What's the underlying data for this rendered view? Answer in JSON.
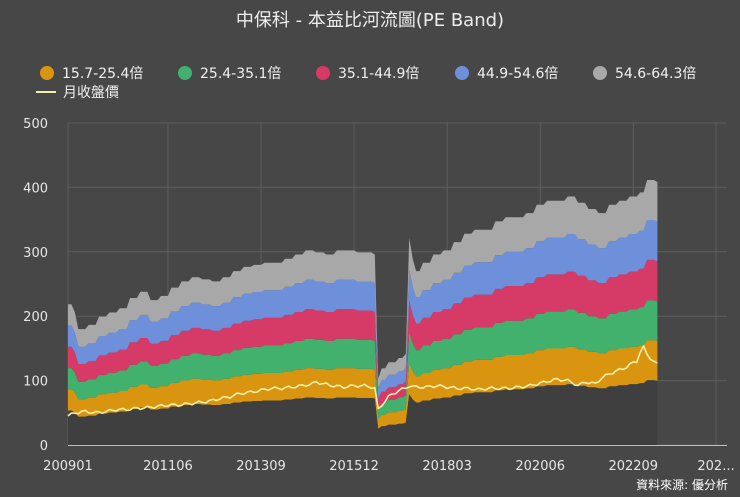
{
  "chart_data": {
    "type": "area",
    "title": "中保科 - 本益比河流圖(PE Band)",
    "source": "資料來源: 優分析",
    "xlabel": "",
    "ylabel": "",
    "ylim": [
      0,
      500
    ],
    "yticks": [
      "0",
      "100",
      "200",
      "300",
      "400",
      "500"
    ],
    "xticks": [
      "200901",
      "201106",
      "201309",
      "201512",
      "201803",
      "202006",
      "202209",
      "202..."
    ],
    "legend_position": "top",
    "x_index_range": [
      0,
      171
    ],
    "xtick_indices": [
      0,
      29,
      56,
      83,
      110,
      137,
      164,
      188
    ],
    "bands": [
      {
        "name": "15.7-25.4倍",
        "color": "#D9950F"
      },
      {
        "name": "25.4-35.1倍",
        "color": "#41B16D"
      },
      {
        "name": "35.1-44.9倍",
        "color": "#D63B67"
      },
      {
        "name": "44.9-54.6倍",
        "color": "#6E8FD9"
      },
      {
        "name": "54.6-64.3倍",
        "color": "#A8A8A8"
      }
    ],
    "close_series": {
      "name": "月收盤價",
      "color": "#F5EFA9"
    },
    "eps_breakpoints": [
      [
        0,
        3.4
      ],
      [
        2,
        3.2
      ],
      [
        3,
        2.8
      ],
      [
        6,
        2.9
      ],
      [
        9,
        3.1
      ],
      [
        12,
        3.2
      ],
      [
        15,
        3.3
      ],
      [
        18,
        3.55
      ],
      [
        21,
        3.7
      ],
      [
        24,
        3.5
      ],
      [
        27,
        3.6
      ],
      [
        30,
        3.8
      ],
      [
        33,
        3.95
      ],
      [
        36,
        4.05
      ],
      [
        39,
        4.0
      ],
      [
        42,
        3.95
      ],
      [
        45,
        4.05
      ],
      [
        48,
        4.2
      ],
      [
        51,
        4.3
      ],
      [
        54,
        4.35
      ],
      [
        57,
        4.4
      ],
      [
        60,
        4.4
      ],
      [
        63,
        4.5
      ],
      [
        66,
        4.6
      ],
      [
        69,
        4.7
      ],
      [
        72,
        4.65
      ],
      [
        75,
        4.6
      ],
      [
        78,
        4.7
      ],
      [
        81,
        4.7
      ],
      [
        84,
        4.65
      ],
      [
        87,
        4.65
      ],
      [
        89,
        4.6
      ],
      [
        90,
        1.6
      ],
      [
        91,
        1.85
      ],
      [
        93,
        2.0
      ],
      [
        96,
        2.1
      ],
      [
        98,
        2.2
      ],
      [
        99,
        5.0
      ],
      [
        100,
        4.5
      ],
      [
        101,
        4.2
      ],
      [
        103,
        4.4
      ],
      [
        106,
        4.6
      ],
      [
        109,
        4.7
      ],
      [
        112,
        4.9
      ],
      [
        115,
        5.1
      ],
      [
        118,
        5.2
      ],
      [
        121,
        5.2
      ],
      [
        124,
        5.4
      ],
      [
        127,
        5.5
      ],
      [
        130,
        5.5
      ],
      [
        133,
        5.6
      ],
      [
        136,
        5.8
      ],
      [
        139,
        5.9
      ],
      [
        142,
        5.9
      ],
      [
        145,
        6.0
      ],
      [
        148,
        5.85
      ],
      [
        151,
        5.7
      ],
      [
        154,
        5.6
      ],
      [
        157,
        5.8
      ],
      [
        160,
        5.9
      ],
      [
        163,
        6.0
      ],
      [
        166,
        6.1
      ],
      [
        168,
        6.4
      ],
      [
        170,
        6.4
      ],
      [
        171,
        6.35
      ]
    ],
    "close_breakpoints": [
      [
        0,
        45
      ],
      [
        2,
        50
      ],
      [
        5,
        52
      ],
      [
        8,
        50
      ],
      [
        11,
        52
      ],
      [
        14,
        55
      ],
      [
        17,
        55
      ],
      [
        20,
        57
      ],
      [
        23,
        58
      ],
      [
        26,
        60
      ],
      [
        29,
        62
      ],
      [
        32,
        62
      ],
      [
        35,
        64
      ],
      [
        38,
        66
      ],
      [
        41,
        68
      ],
      [
        44,
        72
      ],
      [
        47,
        75
      ],
      [
        50,
        80
      ],
      [
        53,
        82
      ],
      [
        56,
        85
      ],
      [
        59,
        88
      ],
      [
        62,
        88
      ],
      [
        65,
        90
      ],
      [
        68,
        92
      ],
      [
        71,
        95
      ],
      [
        72,
        98
      ],
      [
        74,
        95
      ],
      [
        77,
        92
      ],
      [
        80,
        90
      ],
      [
        83,
        92
      ],
      [
        86,
        92
      ],
      [
        88,
        90
      ],
      [
        89,
        88
      ],
      [
        90,
        55
      ],
      [
        91,
        62
      ],
      [
        93,
        75
      ],
      [
        96,
        85
      ],
      [
        98,
        88
      ],
      [
        99,
        92
      ],
      [
        101,
        90
      ],
      [
        104,
        90
      ],
      [
        107,
        92
      ],
      [
        110,
        90
      ],
      [
        113,
        88
      ],
      [
        116,
        88
      ],
      [
        119,
        86
      ],
      [
        122,
        88
      ],
      [
        125,
        88
      ],
      [
        128,
        88
      ],
      [
        131,
        90
      ],
      [
        134,
        92
      ],
      [
        137,
        96
      ],
      [
        140,
        100
      ],
      [
        142,
        102
      ],
      [
        145,
        100
      ],
      [
        147,
        95
      ],
      [
        148,
        92
      ],
      [
        150,
        98
      ],
      [
        153,
        95
      ],
      [
        155,
        105
      ],
      [
        157,
        110
      ],
      [
        159,
        115
      ],
      [
        161,
        118
      ],
      [
        163,
        125
      ],
      [
        165,
        130
      ],
      [
        166,
        145
      ],
      [
        167,
        152
      ],
      [
        168,
        140
      ],
      [
        170,
        130
      ],
      [
        171,
        125
      ]
    ],
    "pe_edges": [
      15.7,
      25.4,
      35.1,
      44.9,
      54.6,
      64.3
    ]
  }
}
